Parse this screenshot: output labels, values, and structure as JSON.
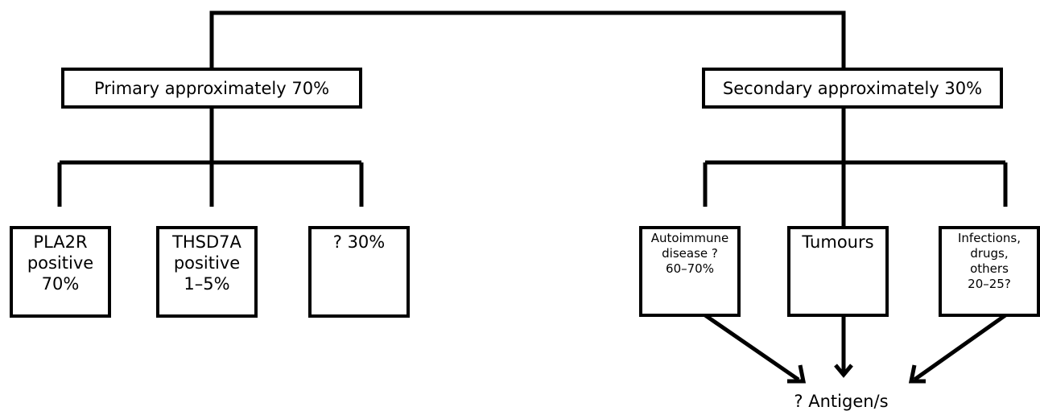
{
  "diagram": {
    "primary": {
      "label": "Primary approximately 70%",
      "children": [
        "PLA2R\npositive\n70%",
        "THSD7A\npositive\n1–5%",
        "? 30%"
      ]
    },
    "secondary": {
      "label": "Secondary approximately 30%",
      "children": [
        "Autoimmune\ndisease ?\n60–70%",
        "Tumours",
        "Infections,\ndrugs,\nothers\n20–25?"
      ]
    },
    "target": {
      "label": "? Antigen/s"
    },
    "colors": {
      "line": "#000000",
      "box_fill": "#ffffff",
      "text": "#000000"
    }
  }
}
